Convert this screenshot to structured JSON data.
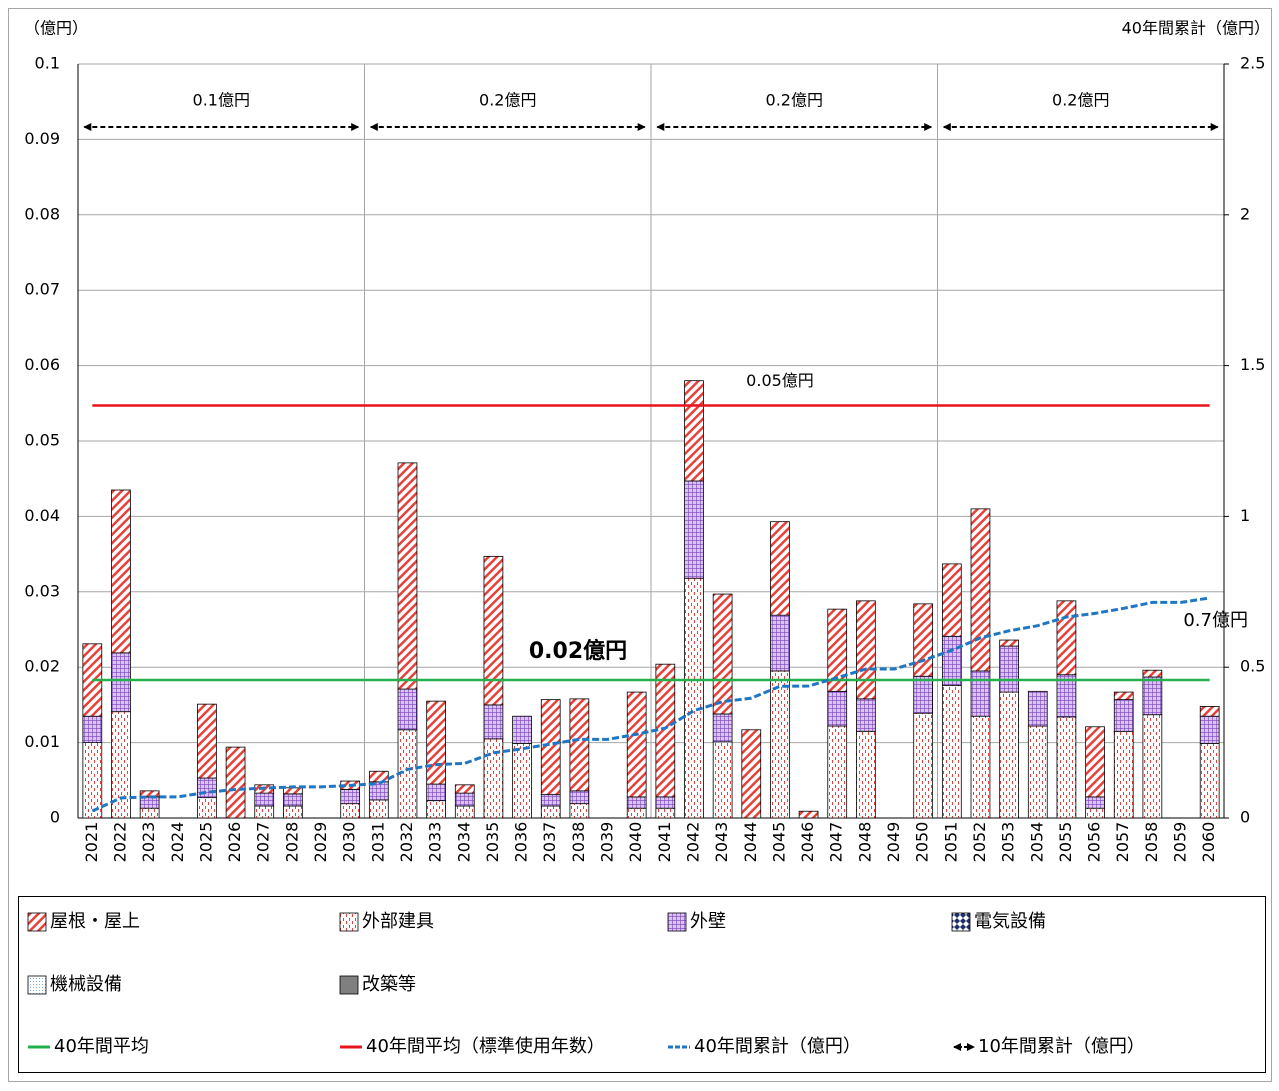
{
  "chart_data": {
    "type": "bar",
    "stacked": true,
    "y_label": "（億円）",
    "y2_label": "40年間累計（億円）",
    "categories": [
      "2021",
      "2022",
      "2023",
      "2024",
      "2025",
      "2026",
      "2027",
      "2028",
      "2029",
      "2030",
      "2031",
      "2032",
      "2033",
      "2034",
      "2035",
      "2036",
      "2037",
      "2038",
      "2039",
      "2040",
      "2041",
      "2042",
      "2043",
      "2044",
      "2045",
      "2046",
      "2047",
      "2048",
      "2049",
      "2050",
      "2051",
      "2052",
      "2053",
      "2054",
      "2055",
      "2056",
      "2057",
      "2058",
      "2059",
      "2060"
    ],
    "ylim": [
      0,
      0.1
    ],
    "yticks": [
      0,
      0.01,
      0.02,
      0.03,
      0.04,
      0.05,
      0.06,
      0.07,
      0.08,
      0.09,
      0.1
    ],
    "y2lim": [
      0,
      2.5
    ],
    "y2ticks": [
      0,
      0.5,
      1,
      1.5,
      2,
      2.5
    ],
    "grid": true,
    "series": [
      {
        "name": "外部建具",
        "color": "#e8403a",
        "pattern": "dots",
        "values": [
          0.01,
          0.0141,
          0.0013,
          0,
          0.0027,
          0,
          0.0016,
          0.0016,
          0,
          0.0019,
          0.0024,
          0.0117,
          0.0023,
          0.0016,
          0.0105,
          0.0099,
          0.0016,
          0.0019,
          0,
          0.0013,
          0.0013,
          0.0318,
          0.0101,
          0,
          0.0195,
          0,
          0.0122,
          0.0115,
          0,
          0.0139,
          0.0176,
          0.0135,
          0.0167,
          0.0122,
          0.0134,
          0.0013,
          0.0115,
          0.0137,
          0,
          0.0099
        ]
      },
      {
        "name": "外壁",
        "color": "#7b3fbf",
        "pattern": "grid",
        "values": [
          0.0035,
          0.0078,
          0.0015,
          0,
          0.0026,
          0,
          0.0017,
          0.0016,
          0,
          0.0019,
          0.0024,
          0.0054,
          0.0022,
          0.0017,
          0.0045,
          0.0036,
          0.0015,
          0.0017,
          0,
          0.0015,
          0.0015,
          0.0129,
          0.0037,
          0,
          0.0074,
          0,
          0.0046,
          0.0043,
          0,
          0.0049,
          0.0065,
          0.006,
          0.0061,
          0.0046,
          0.0056,
          0.0015,
          0.0042,
          0.005,
          0,
          0.0036
        ]
      },
      {
        "name": "屋根・屋上",
        "color": "#e8403a",
        "pattern": "diagonal",
        "values": [
          0.0096,
          0.0216,
          0.0008,
          0,
          0.0098,
          0.0094,
          0.0011,
          0.0008,
          0,
          0.0011,
          0.0014,
          0.03,
          0.011,
          0.0011,
          0.0197,
          0,
          0.0126,
          0.0122,
          0,
          0.0139,
          0.0176,
          0.0133,
          0.0159,
          0.0117,
          0.0124,
          0.0009,
          0.0109,
          0.013,
          0,
          0.0096,
          0.0096,
          0.0215,
          0.0008,
          0,
          0.0098,
          0.0093,
          0.001,
          0.0009,
          0,
          0.0013
        ]
      },
      {
        "name": "電気設備",
        "color": "#1f2f6b",
        "pattern": "diamond",
        "values": [
          0,
          0,
          0,
          0,
          0,
          0,
          0,
          0,
          0,
          0,
          0,
          0,
          0,
          0,
          0,
          0,
          0,
          0,
          0,
          0,
          0,
          0,
          0,
          0,
          0,
          0,
          0,
          0,
          0,
          0,
          0,
          0,
          0,
          0,
          0,
          0,
          0,
          0,
          0,
          0
        ]
      },
      {
        "name": "機械設備",
        "color": "#7fb2d9",
        "pattern": "finedots",
        "values": [
          0,
          0,
          0,
          0,
          0,
          0,
          0,
          0,
          0,
          0,
          0,
          0,
          0,
          0,
          0,
          0,
          0,
          0,
          0,
          0,
          0,
          0,
          0,
          0,
          0,
          0,
          0,
          0,
          0,
          0,
          0,
          0,
          0,
          0,
          0,
          0,
          0,
          0,
          0,
          0
        ]
      },
      {
        "name": "改築等",
        "color": "#7f7f7f",
        "pattern": "solid",
        "values": [
          0,
          0,
          0,
          0,
          0,
          0,
          0,
          0,
          0,
          0,
          0,
          0,
          0,
          0,
          0,
          0,
          0,
          0,
          0,
          0,
          0,
          0,
          0,
          0,
          0,
          0,
          0,
          0,
          0,
          0,
          0,
          0,
          0,
          0,
          0,
          0,
          0,
          0,
          0,
          0
        ]
      }
    ],
    "legend_order": [
      2,
      0,
      1,
      3,
      4,
      5
    ],
    "average": {
      "name": "40年間平均",
      "value": 0.0183,
      "value_label": "0.02億円",
      "color": "#22b14c"
    },
    "standard_average": {
      "name": "40年間平均（標準使用年数）",
      "value": 0.0547,
      "value_label": "0.05億円",
      "color": "#e8141c"
    },
    "cumulative": {
      "name": "40年間累計（億円）",
      "color": "#1f77c4",
      "axis": "y2",
      "end_label": "0.7億円",
      "values": [
        0.0231,
        0.0666,
        0.0702,
        0.0702,
        0.0853,
        0.0947,
        0.0991,
        0.1031,
        0.1031,
        0.108,
        0.1142,
        0.1613,
        0.1768,
        0.1812,
        0.2159,
        0.2294,
        0.2451,
        0.2609,
        0.2609,
        0.2776,
        0.298,
        0.356,
        0.3857,
        0.3974,
        0.4367,
        0.4376,
        0.4653,
        0.4941,
        0.4941,
        0.5225,
        0.5562,
        0.5972,
        0.6208,
        0.6376,
        0.6664,
        0.6785,
        0.6952,
        0.7148,
        0.7148,
        0.7296
      ]
    },
    "ten_year": {
      "name": "10年間累計（億円）",
      "values": [
        0.11,
        0.17,
        0.24,
        0.21
      ],
      "value_labels": [
        "0.1億円",
        "0.2億円",
        "0.2億円",
        "0.2億円"
      ]
    }
  }
}
